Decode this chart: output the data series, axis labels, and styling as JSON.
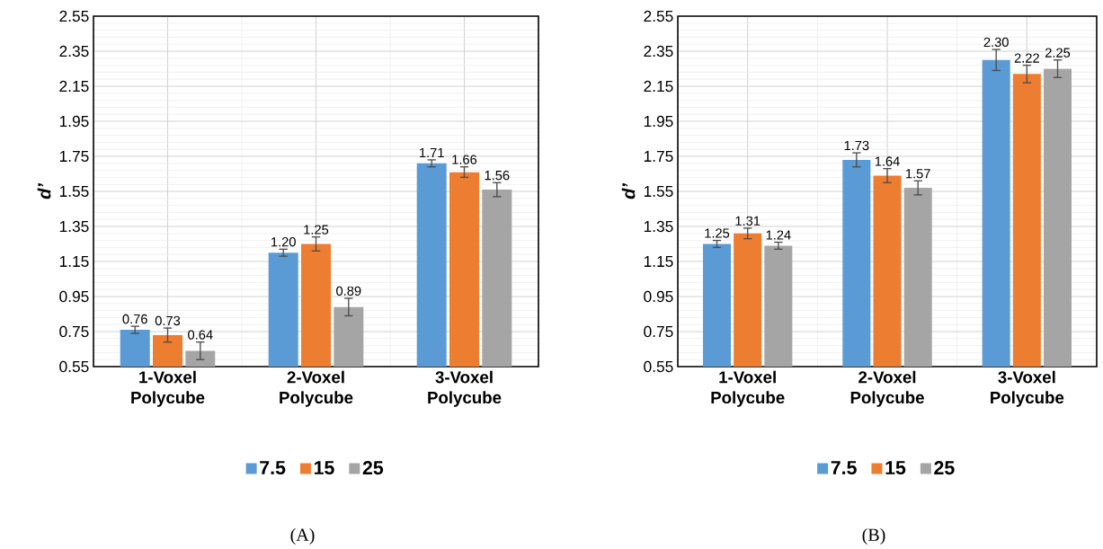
{
  "chart_data": [
    {
      "type": "bar",
      "ylabel": "d’",
      "categories": [
        "1-Voxel Polycube",
        "2-Voxel Polycube",
        "3-Voxel Polycube"
      ],
      "series": [
        {
          "name": "7.5",
          "color": "#5b9bd5",
          "values": [
            0.76,
            1.2,
            1.71
          ],
          "errors": [
            0.02,
            0.02,
            0.02
          ],
          "value_labels": [
            "0.76",
            "1.20",
            "1.71"
          ]
        },
        {
          "name": "15",
          "color": "#ed7d31",
          "values": [
            0.73,
            1.25,
            1.66
          ],
          "errors": [
            0.04,
            0.04,
            0.03
          ],
          "value_labels": [
            "0.73",
            "1.25",
            "1.66"
          ]
        },
        {
          "name": "25",
          "color": "#a5a5a5",
          "values": [
            0.64,
            0.89,
            1.56
          ],
          "errors": [
            0.05,
            0.05,
            0.04
          ],
          "value_labels": [
            "0.64",
            "0.89",
            "1.56"
          ]
        }
      ],
      "ylim": [
        0.55,
        2.55
      ],
      "yticks": [
        0.55,
        0.75,
        0.95,
        1.15,
        1.35,
        1.55,
        1.75,
        1.95,
        2.15,
        2.35,
        2.55
      ],
      "grid": true,
      "legend": "bottom",
      "annotations": [
        "(A)"
      ]
    },
    {
      "type": "bar",
      "ylabel": "d’",
      "categories": [
        "1-Voxel Polycube",
        "2-Voxel Polycube",
        "3-Voxel Polycube"
      ],
      "series": [
        {
          "name": "7.5",
          "color": "#5b9bd5",
          "values": [
            1.25,
            1.73,
            2.3
          ],
          "errors": [
            0.02,
            0.04,
            0.06
          ],
          "value_labels": [
            "1.25",
            "1.73",
            "2.30"
          ]
        },
        {
          "name": "15",
          "color": "#ed7d31",
          "values": [
            1.31,
            1.64,
            2.22
          ],
          "errors": [
            0.03,
            0.04,
            0.05
          ],
          "value_labels": [
            "1.31",
            "1.64",
            "2.22"
          ]
        },
        {
          "name": "25",
          "color": "#a5a5a5",
          "values": [
            1.24,
            1.57,
            2.25
          ],
          "errors": [
            0.02,
            0.04,
            0.05
          ],
          "value_labels": [
            "1.24",
            "1.57",
            "2.25"
          ]
        }
      ],
      "ylim": [
        0.55,
        2.55
      ],
      "yticks": [
        0.55,
        0.75,
        0.95,
        1.15,
        1.35,
        1.55,
        1.75,
        1.95,
        2.15,
        2.35,
        2.55
      ],
      "grid": true,
      "legend": "bottom",
      "annotations": [
        "(B)"
      ]
    }
  ]
}
